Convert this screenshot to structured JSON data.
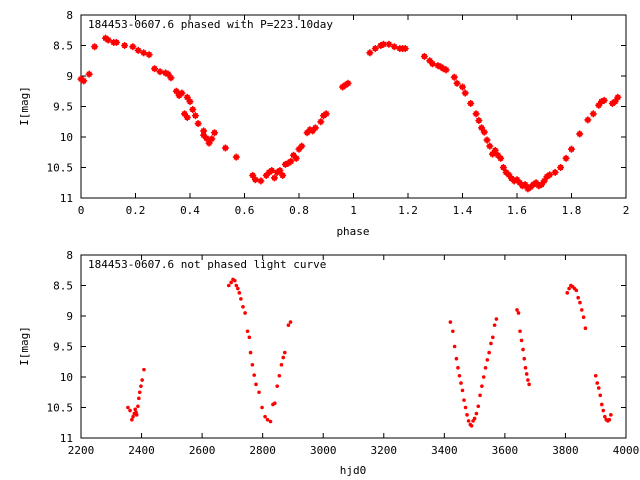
{
  "colors": {
    "points": "#ff0000",
    "frame": "#000000",
    "background": "#ffffff"
  },
  "chart_data": [
    {
      "type": "scatter",
      "title": "184453-0607.6 phased with P=223.10day",
      "xlabel": "phase",
      "ylabel": "I[mag]",
      "xlim": [
        0,
        2
      ],
      "ylim": [
        11,
        8
      ],
      "y_inverted": true,
      "x_ticks": [
        0,
        0.2,
        0.4,
        0.6,
        0.8,
        1,
        1.2,
        1.4,
        1.6,
        1.8,
        2
      ],
      "x_tick_labels": [
        "0",
        "0.2",
        "0.4",
        "0.6",
        "0.8",
        "1",
        "1.2",
        "1.4",
        "1.6",
        "1.8",
        "2"
      ],
      "y_ticks": [
        8,
        8.5,
        9,
        9.5,
        10,
        10.5,
        11
      ],
      "y_tick_labels": [
        "8",
        "8.5",
        "9",
        "9.5",
        "10",
        "10.5",
        "11"
      ],
      "grid": false,
      "marker": "plus",
      "points": [
        [
          0.0,
          9.05
        ],
        [
          0.01,
          9.08
        ],
        [
          0.03,
          8.97
        ],
        [
          0.05,
          8.52
        ],
        [
          0.09,
          8.38
        ],
        [
          0.1,
          8.41
        ],
        [
          0.12,
          8.45
        ],
        [
          0.13,
          8.45
        ],
        [
          0.16,
          8.5
        ],
        [
          0.19,
          8.52
        ],
        [
          0.21,
          8.58
        ],
        [
          0.23,
          8.62
        ],
        [
          0.25,
          8.65
        ],
        [
          0.27,
          8.88
        ],
        [
          0.29,
          8.93
        ],
        [
          0.31,
          8.95
        ],
        [
          0.32,
          8.97
        ],
        [
          0.33,
          9.03
        ],
        [
          0.35,
          9.25
        ],
        [
          0.36,
          9.32
        ],
        [
          0.37,
          9.28
        ],
        [
          0.39,
          9.35
        ],
        [
          0.4,
          9.42
        ],
        [
          0.38,
          9.62
        ],
        [
          0.39,
          9.68
        ],
        [
          0.41,
          9.55
        ],
        [
          0.42,
          9.65
        ],
        [
          0.43,
          9.78
        ],
        [
          0.45,
          9.9
        ],
        [
          0.45,
          9.97
        ],
        [
          0.46,
          10.02
        ],
        [
          0.47,
          10.1
        ],
        [
          0.48,
          10.03
        ],
        [
          0.49,
          9.93
        ],
        [
          0.53,
          10.18
        ],
        [
          0.57,
          10.33
        ],
        [
          0.63,
          10.63
        ],
        [
          0.64,
          10.7
        ],
        [
          0.66,
          10.72
        ],
        [
          0.68,
          10.63
        ],
        [
          0.69,
          10.58
        ],
        [
          0.7,
          10.55
        ],
        [
          0.71,
          10.67
        ],
        [
          0.72,
          10.58
        ],
        [
          0.73,
          10.55
        ],
        [
          0.74,
          10.63
        ],
        [
          0.75,
          10.45
        ],
        [
          0.76,
          10.43
        ],
        [
          0.77,
          10.4
        ],
        [
          0.78,
          10.3
        ],
        [
          0.79,
          10.35
        ],
        [
          0.8,
          10.2
        ],
        [
          0.81,
          10.15
        ],
        [
          0.83,
          9.93
        ],
        [
          0.84,
          9.88
        ],
        [
          0.85,
          9.9
        ],
        [
          0.86,
          9.85
        ],
        [
          0.88,
          9.75
        ],
        [
          0.89,
          9.65
        ],
        [
          0.9,
          9.62
        ],
        [
          0.96,
          9.18
        ],
        [
          0.97,
          9.15
        ],
        [
          0.98,
          9.12
        ],
        [
          1.06,
          8.62
        ],
        [
          1.08,
          8.55
        ],
        [
          1.1,
          8.5
        ],
        [
          1.11,
          8.48
        ],
        [
          1.13,
          8.48
        ],
        [
          1.15,
          8.52
        ],
        [
          1.17,
          8.55
        ],
        [
          1.18,
          8.55
        ],
        [
          1.19,
          8.55
        ],
        [
          1.26,
          8.68
        ],
        [
          1.28,
          8.75
        ],
        [
          1.29,
          8.8
        ],
        [
          1.31,
          8.83
        ],
        [
          1.32,
          8.85
        ],
        [
          1.33,
          8.88
        ],
        [
          1.34,
          8.9
        ],
        [
          1.37,
          9.02
        ],
        [
          1.38,
          9.12
        ],
        [
          1.4,
          9.18
        ],
        [
          1.41,
          9.28
        ],
        [
          1.43,
          9.45
        ],
        [
          1.45,
          9.62
        ],
        [
          1.46,
          9.73
        ],
        [
          1.47,
          9.85
        ],
        [
          1.48,
          9.92
        ],
        [
          1.49,
          10.05
        ],
        [
          1.5,
          10.15
        ],
        [
          1.51,
          10.28
        ],
        [
          1.52,
          10.22
        ],
        [
          1.53,
          10.3
        ],
        [
          1.54,
          10.35
        ],
        [
          1.55,
          10.5
        ],
        [
          1.56,
          10.58
        ],
        [
          1.57,
          10.62
        ],
        [
          1.58,
          10.68
        ],
        [
          1.59,
          10.72
        ],
        [
          1.6,
          10.7
        ],
        [
          1.61,
          10.75
        ],
        [
          1.62,
          10.8
        ],
        [
          1.63,
          10.78
        ],
        [
          1.64,
          10.85
        ],
        [
          1.65,
          10.82
        ],
        [
          1.66,
          10.78
        ],
        [
          1.67,
          10.75
        ],
        [
          1.68,
          10.8
        ],
        [
          1.69,
          10.78
        ],
        [
          1.7,
          10.72
        ],
        [
          1.71,
          10.65
        ],
        [
          1.72,
          10.62
        ],
        [
          1.74,
          10.58
        ],
        [
          1.76,
          10.5
        ],
        [
          1.78,
          10.35
        ],
        [
          1.8,
          10.2
        ],
        [
          1.83,
          9.95
        ],
        [
          1.86,
          9.72
        ],
        [
          1.88,
          9.62
        ],
        [
          1.9,
          9.48
        ],
        [
          1.91,
          9.42
        ],
        [
          1.92,
          9.4
        ],
        [
          1.95,
          9.45
        ],
        [
          1.96,
          9.42
        ],
        [
          1.97,
          9.35
        ]
      ]
    },
    {
      "type": "scatter",
      "title": "184453-0607.6 not phased light curve",
      "xlabel": "hjd0",
      "ylabel": "I[mag]",
      "xlim": [
        2200,
        4000
      ],
      "ylim": [
        11,
        8
      ],
      "y_inverted": true,
      "x_ticks": [
        2200,
        2400,
        2600,
        2800,
        3000,
        3200,
        3400,
        3600,
        3800,
        4000
      ],
      "x_tick_labels": [
        "2200",
        "2400",
        "2600",
        "2800",
        "3000",
        "3200",
        "3400",
        "3600",
        "3800",
        "4000"
      ],
      "y_ticks": [
        8,
        8.5,
        9,
        9.5,
        10,
        10.5,
        11
      ],
      "y_tick_labels": [
        "8",
        "8.5",
        "9",
        "9.5",
        "10",
        "10.5",
        "11"
      ],
      "grid": false,
      "marker": "dot",
      "points": [
        [
          2355,
          10.5
        ],
        [
          2362,
          10.55
        ],
        [
          2368,
          10.7
        ],
        [
          2372,
          10.65
        ],
        [
          2376,
          10.6
        ],
        [
          2379,
          10.53
        ],
        [
          2382,
          10.58
        ],
        [
          2384,
          10.62
        ],
        [
          2388,
          10.48
        ],
        [
          2391,
          10.35
        ],
        [
          2394,
          10.25
        ],
        [
          2398,
          10.15
        ],
        [
          2402,
          10.05
        ],
        [
          2408,
          9.88
        ],
        [
          2688,
          8.5
        ],
        [
          2696,
          8.45
        ],
        [
          2702,
          8.4
        ],
        [
          2708,
          8.42
        ],
        [
          2713,
          8.5
        ],
        [
          2718,
          8.55
        ],
        [
          2723,
          8.62
        ],
        [
          2728,
          8.72
        ],
        [
          2735,
          8.85
        ],
        [
          2742,
          8.95
        ],
        [
          2750,
          9.25
        ],
        [
          2756,
          9.35
        ],
        [
          2760,
          9.6
        ],
        [
          2766,
          9.8
        ],
        [
          2772,
          9.97
        ],
        [
          2778,
          10.12
        ],
        [
          2788,
          10.25
        ],
        [
          2798,
          10.5
        ],
        [
          2808,
          10.65
        ],
        [
          2816,
          10.7
        ],
        [
          2826,
          10.73
        ],
        [
          2834,
          10.45
        ],
        [
          2840,
          10.43
        ],
        [
          2848,
          10.15
        ],
        [
          2855,
          9.98
        ],
        [
          2862,
          9.8
        ],
        [
          2868,
          9.68
        ],
        [
          2873,
          9.6
        ],
        [
          2885,
          9.15
        ],
        [
          2892,
          9.1
        ],
        [
          3420,
          9.1
        ],
        [
          3428,
          9.25
        ],
        [
          3434,
          9.5
        ],
        [
          3440,
          9.7
        ],
        [
          3445,
          9.85
        ],
        [
          3450,
          9.98
        ],
        [
          3455,
          10.1
        ],
        [
          3460,
          10.22
        ],
        [
          3465,
          10.38
        ],
        [
          3470,
          10.5
        ],
        [
          3475,
          10.62
        ],
        [
          3480,
          10.72
        ],
        [
          3486,
          10.78
        ],
        [
          3490,
          10.8
        ],
        [
          3495,
          10.72
        ],
        [
          3500,
          10.68
        ],
        [
          3506,
          10.6
        ],
        [
          3512,
          10.48
        ],
        [
          3518,
          10.3
        ],
        [
          3524,
          10.15
        ],
        [
          3530,
          10.0
        ],
        [
          3536,
          9.85
        ],
        [
          3542,
          9.72
        ],
        [
          3548,
          9.6
        ],
        [
          3554,
          9.45
        ],
        [
          3560,
          9.35
        ],
        [
          3566,
          9.15
        ],
        [
          3572,
          9.05
        ],
        [
          3640,
          8.9
        ],
        [
          3645,
          8.95
        ],
        [
          3650,
          9.25
        ],
        [
          3655,
          9.4
        ],
        [
          3660,
          9.55
        ],
        [
          3664,
          9.7
        ],
        [
          3668,
          9.85
        ],
        [
          3672,
          9.95
        ],
        [
          3676,
          10.05
        ],
        [
          3680,
          10.12
        ],
        [
          3806,
          8.62
        ],
        [
          3812,
          8.55
        ],
        [
          3818,
          8.5
        ],
        [
          3824,
          8.52
        ],
        [
          3830,
          8.55
        ],
        [
          3836,
          8.58
        ],
        [
          3842,
          8.7
        ],
        [
          3848,
          8.78
        ],
        [
          3854,
          8.9
        ],
        [
          3860,
          9.02
        ],
        [
          3866,
          9.2
        ],
        [
          3900,
          9.98
        ],
        [
          3905,
          10.1
        ],
        [
          3910,
          10.18
        ],
        [
          3915,
          10.3
        ],
        [
          3920,
          10.45
        ],
        [
          3925,
          10.55
        ],
        [
          3930,
          10.65
        ],
        [
          3935,
          10.7
        ],
        [
          3940,
          10.72
        ],
        [
          3945,
          10.7
        ],
        [
          3950,
          10.62
        ]
      ]
    }
  ]
}
